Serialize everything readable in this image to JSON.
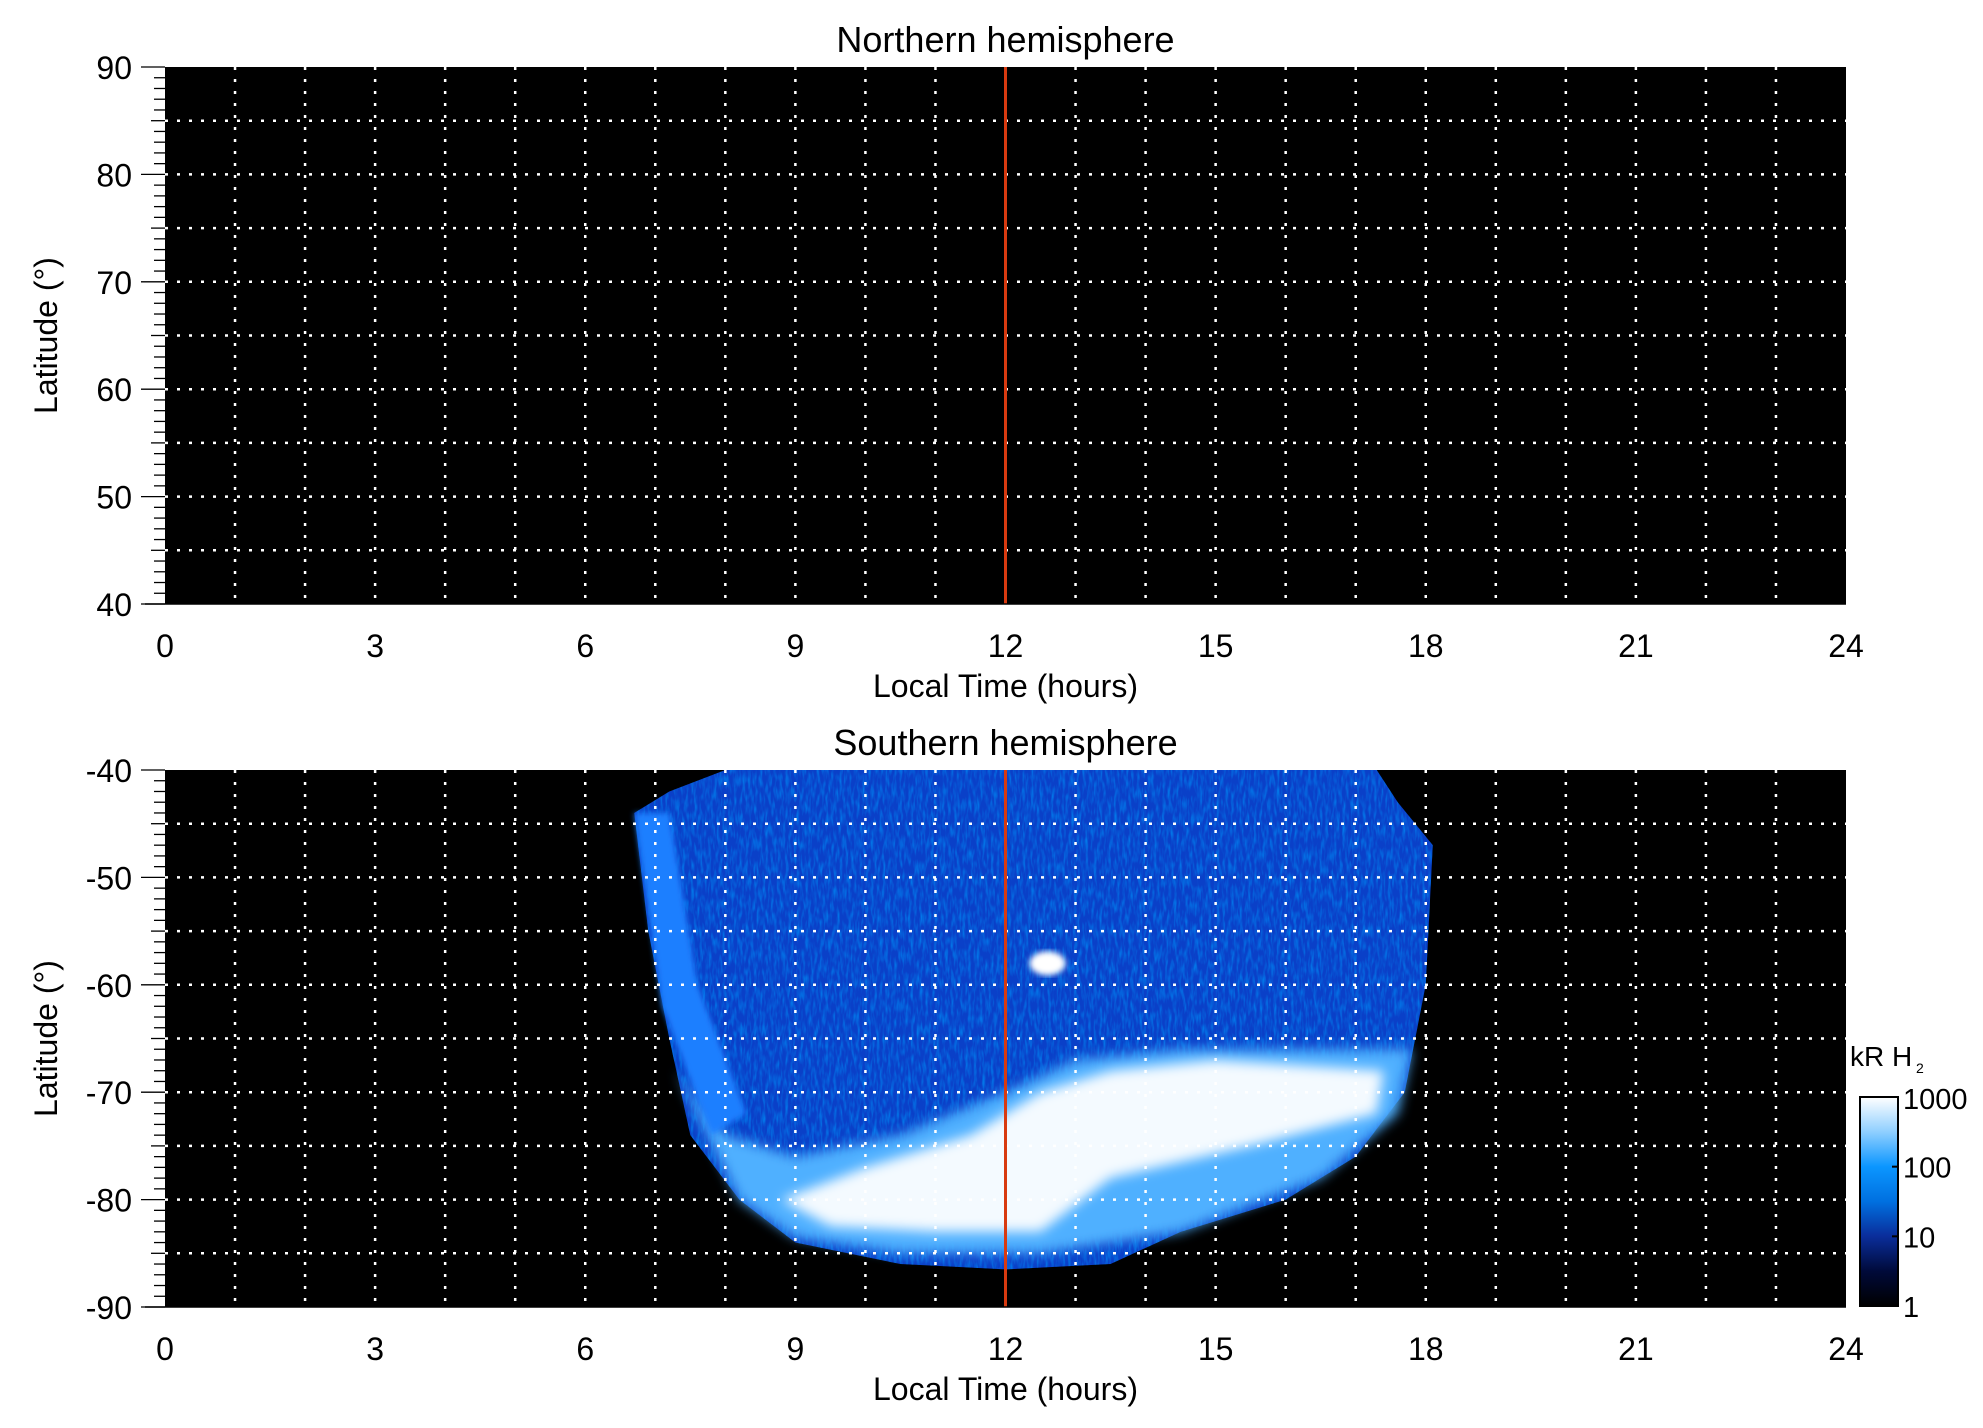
{
  "chart_data": [
    {
      "type": "heatmap",
      "title": "Northern hemisphere",
      "xlabel": "Local Time (hours)",
      "ylabel": "Latitude (°)",
      "xlim": [
        0,
        24
      ],
      "ylim": [
        40,
        90
      ],
      "xticks": [
        "0",
        "3",
        "6",
        "9",
        "12",
        "15",
        "18",
        "21",
        "24"
      ],
      "yticks": [
        "40",
        "50",
        "60",
        "70",
        "80",
        "90"
      ],
      "grid": true,
      "marker_line_x": 12,
      "marker_color": "#d83a10",
      "emission": "none"
    },
    {
      "type": "heatmap",
      "title": "Southern hemisphere",
      "xlabel": "Local Time (hours)",
      "ylabel": "Latitude (°)",
      "xlim": [
        0,
        24
      ],
      "ylim": [
        -90,
        -40
      ],
      "xticks": [
        "0",
        "3",
        "6",
        "9",
        "12",
        "15",
        "18",
        "21",
        "24"
      ],
      "yticks": [
        "-90",
        "-80",
        "-70",
        "-60",
        "-50",
        "-40"
      ],
      "grid": true,
      "marker_line_x": 12,
      "marker_color": "#d83a10",
      "emission_region_LT": [
        6.7,
        18.1
      ],
      "bright_oval_lat": [
        -82,
        -66
      ],
      "bright_spot": {
        "lt": 12.6,
        "lat": -58
      }
    }
  ],
  "colorbar": {
    "label": "kR H",
    "label_sub": "2",
    "scale": "log",
    "ticks": [
      "1",
      "10",
      "100",
      "1000"
    ],
    "colors": [
      "#000000",
      "#000a3a",
      "#0a2d9a",
      "#0070e0",
      "#0b96ff",
      "#8fcfff",
      "#ffffff"
    ]
  }
}
